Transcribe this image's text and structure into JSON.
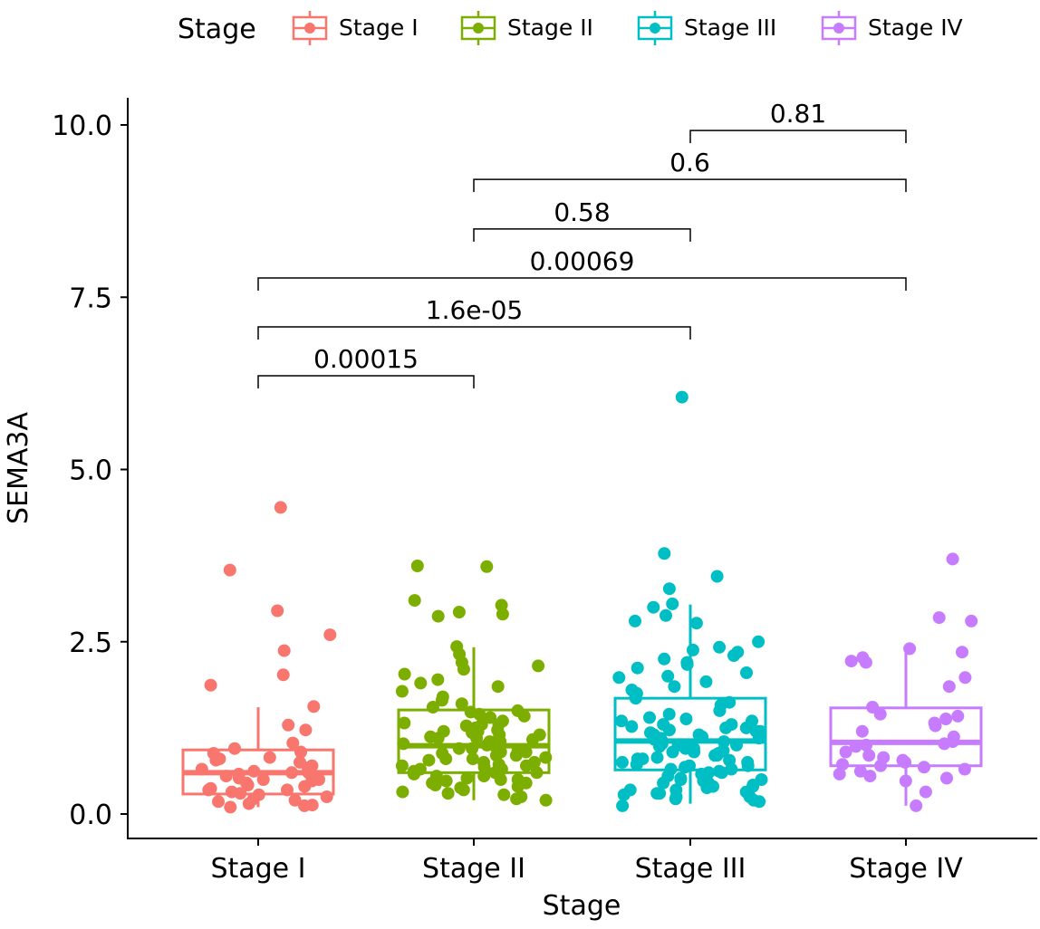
{
  "chart_data": {
    "type": "boxplot",
    "title": "",
    "xlabel": "Stage",
    "ylabel": "SEMA3A",
    "ylim": [
      0,
      10
    ],
    "yticks": [
      "0.0",
      "2.5",
      "5.0",
      "7.5",
      "10.0"
    ],
    "ytick_values": [
      0,
      2.5,
      5,
      7.5,
      10
    ],
    "grid": false,
    "legend": {
      "title": "Stage",
      "placement": "top"
    },
    "categories": [
      "Stage I",
      "Stage II",
      "Stage III",
      "Stage IV"
    ],
    "colors": [
      "#F8766D",
      "#7CAE00",
      "#00BFC4",
      "#C77CFF"
    ],
    "boxes": [
      {
        "name": "Stage I",
        "whisker_low": 0.1,
        "q1": 0.29,
        "median": 0.6,
        "q3": 0.93,
        "whisker_high": 1.55
      },
      {
        "name": "Stage II",
        "whisker_low": 0.2,
        "q1": 0.6,
        "median": 0.99,
        "q3": 1.51,
        "whisker_high": 2.42
      },
      {
        "name": "Stage III",
        "whisker_low": 0.15,
        "q1": 0.64,
        "median": 1.06,
        "q3": 1.68,
        "whisker_high": 3.04
      },
      {
        "name": "Stage IV",
        "whisker_low": 0.12,
        "q1": 0.7,
        "median": 1.04,
        "q3": 1.54,
        "whisker_high": 2.39
      }
    ],
    "points": [
      [
        4.45,
        3.54,
        2.95,
        2.6,
        2.37,
        2.02,
        1.87,
        1.56,
        1.29,
        1.22,
        1.03,
        0.95,
        0.9,
        0.88,
        0.82,
        0.8,
        0.78,
        0.75,
        0.7,
        0.67,
        0.65,
        0.62,
        0.6,
        0.58,
        0.55,
        0.52,
        0.5,
        0.48,
        0.45,
        0.42,
        0.4,
        0.37,
        0.35,
        0.32,
        0.3,
        0.28,
        0.25,
        0.22,
        0.2,
        0.18,
        0.15,
        0.13,
        0.12,
        0.1,
        0.5,
        0.6,
        0.35
      ],
      [
        3.6,
        3.59,
        3.1,
        3.03,
        2.93,
        2.9,
        2.87,
        2.43,
        2.32,
        2.2,
        2.15,
        2.1,
        2.03,
        1.95,
        1.9,
        1.85,
        1.78,
        1.7,
        1.65,
        1.6,
        1.55,
        1.5,
        1.48,
        1.45,
        1.42,
        1.4,
        1.35,
        1.32,
        1.3,
        1.28,
        1.25,
        1.22,
        1.2,
        1.18,
        1.15,
        1.12,
        1.1,
        1.08,
        1.05,
        1.02,
        1.0,
        0.98,
        0.95,
        0.92,
        0.9,
        0.88,
        0.85,
        0.82,
        0.8,
        0.78,
        0.75,
        0.72,
        0.7,
        0.68,
        0.65,
        0.62,
        0.6,
        0.58,
        0.55,
        0.52,
        0.5,
        0.48,
        0.45,
        0.42,
        0.4,
        0.38,
        0.35,
        0.32,
        0.3,
        0.28,
        0.25,
        0.22,
        0.2,
        1.0,
        0.9,
        0.8,
        0.7,
        1.1,
        1.2,
        0.6,
        0.5,
        1.3,
        0.95,
        0.85,
        0.75,
        1.05,
        0.65,
        0.55,
        0.45,
        1.15
      ],
      [
        6.05,
        3.78,
        3.45,
        3.27,
        3.05,
        3.0,
        2.88,
        2.8,
        2.77,
        2.5,
        2.42,
        2.38,
        2.35,
        2.3,
        2.25,
        2.2,
        2.17,
        2.12,
        2.05,
        2.0,
        1.98,
        1.92,
        1.85,
        1.8,
        1.75,
        1.72,
        1.68,
        1.62,
        1.58,
        1.5,
        1.45,
        1.4,
        1.38,
        1.35,
        1.3,
        1.27,
        1.25,
        1.22,
        1.2,
        1.18,
        1.15,
        1.12,
        1.1,
        1.08,
        1.05,
        1.02,
        1.0,
        0.98,
        0.95,
        0.92,
        0.9,
        0.88,
        0.85,
        0.82,
        0.8,
        0.78,
        0.75,
        0.72,
        0.7,
        0.68,
        0.65,
        0.62,
        0.6,
        0.58,
        0.55,
        0.52,
        0.5,
        0.48,
        0.45,
        0.42,
        0.4,
        0.38,
        0.35,
        0.32,
        0.3,
        0.28,
        0.25,
        0.22,
        0.2,
        0.18,
        0.12,
        1.0,
        0.9,
        0.8,
        0.7,
        1.1,
        1.2,
        0.6,
        0.5,
        1.3,
        0.95,
        0.85,
        0.75,
        1.05,
        0.65,
        0.55,
        0.45,
        1.15,
        0.35,
        0.25,
        1.25,
        1.35,
        0.4,
        0.3
      ],
      [
        3.7,
        2.85,
        2.8,
        2.4,
        2.35,
        2.27,
        2.22,
        2.2,
        1.98,
        1.85,
        1.55,
        1.45,
        1.42,
        1.38,
        1.32,
        1.28,
        1.2,
        1.12,
        1.05,
        1.02,
        1.0,
        0.98,
        0.9,
        0.85,
        0.82,
        0.78,
        0.75,
        0.72,
        0.7,
        0.68,
        0.65,
        0.62,
        0.58,
        0.55,
        0.52,
        0.48,
        0.32,
        0.12
      ]
    ],
    "comparisons": [
      {
        "groups": [
          "Stage I",
          "Stage II"
        ],
        "y": 6.36,
        "label": "0.00015"
      },
      {
        "groups": [
          "Stage I",
          "Stage III"
        ],
        "y": 7.07,
        "label": "1.6e-05"
      },
      {
        "groups": [
          "Stage I",
          "Stage IV"
        ],
        "y": 7.78,
        "label": "0.00069"
      },
      {
        "groups": [
          "Stage II",
          "Stage III"
        ],
        "y": 8.49,
        "label": "0.58"
      },
      {
        "groups": [
          "Stage II",
          "Stage IV"
        ],
        "y": 9.21,
        "label": "0.6"
      },
      {
        "groups": [
          "Stage III",
          "Stage IV"
        ],
        "y": 9.92,
        "label": "0.81"
      }
    ]
  }
}
